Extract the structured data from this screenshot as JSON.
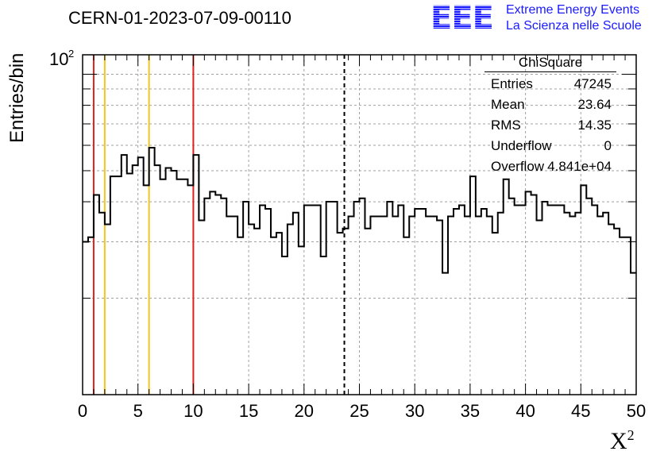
{
  "header": {
    "run_title": "CERN-01-2023-07-09-00110",
    "logo_text": "EEE",
    "org_line1": "Extreme Energy Events",
    "org_line2": "La Scienza nelle Scuole"
  },
  "stats": {
    "title": "ChiSquare",
    "rows": [
      {
        "label": "Entries",
        "value": "47245"
      },
      {
        "label": "Mean",
        "value": "23.64"
      },
      {
        "label": "RMS",
        "value": "14.35"
      },
      {
        "label": "Underflow",
        "value": "0"
      },
      {
        "label": "Overflow",
        "value": "4.841e+04"
      }
    ]
  },
  "chart_data": {
    "type": "histogram",
    "ylabel": "Entries/bin",
    "xlabel": "X",
    "xlabel_sup": "2",
    "x_range": [
      0,
      50
    ],
    "y_scale": "log",
    "y_range": [
      10,
      115
    ],
    "x_ticks": [
      "0",
      "5",
      "10",
      "15",
      "20",
      "25",
      "30",
      "35",
      "40",
      "45",
      "50"
    ],
    "y_tick_label_base": "10",
    "y_tick_label_exp": "2",
    "bin_width": 0.5,
    "grid": true,
    "values": [
      30,
      31,
      42,
      37,
      34,
      48,
      48,
      56,
      49,
      52,
      55,
      45,
      59,
      52,
      47,
      51,
      50,
      47,
      47,
      45,
      56,
      35,
      41,
      43,
      42,
      41,
      36,
      36,
      31,
      40,
      34,
      33,
      39,
      38,
      31,
      32,
      27,
      34,
      37,
      29,
      39,
      39,
      39,
      27,
      40,
      40,
      32,
      33,
      36,
      40,
      41,
      33,
      36,
      36,
      36,
      40,
      36,
      39,
      31,
      36,
      38,
      38,
      36,
      36,
      35,
      24,
      36,
      38,
      39,
      36,
      48,
      36,
      38,
      36,
      32,
      37,
      47,
      41,
      39,
      39,
      43,
      42,
      35,
      40,
      39,
      39,
      39,
      37,
      36,
      37,
      45,
      41,
      39,
      36,
      37,
      34,
      33,
      31,
      31,
      24,
      27
    ],
    "markers": [
      {
        "x": 1,
        "color": "#e0201b",
        "style": "solid"
      },
      {
        "x": 2,
        "color": "#f5c518",
        "style": "solid"
      },
      {
        "x": 6,
        "color": "#f5c518",
        "style": "solid"
      },
      {
        "x": 10,
        "color": "#e0201b",
        "style": "solid"
      },
      {
        "x": 23.64,
        "color": "#000000",
        "style": "dashed"
      }
    ]
  }
}
